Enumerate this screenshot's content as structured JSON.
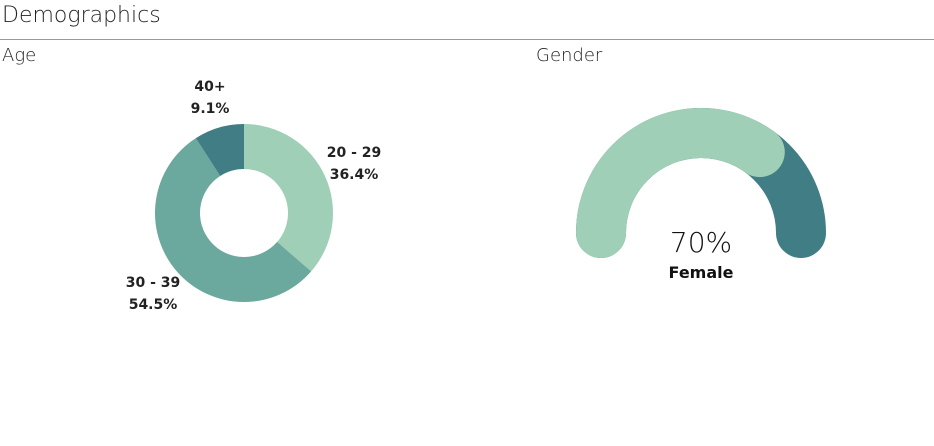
{
  "section_title": "Demographics",
  "chart_data": [
    {
      "type": "pie",
      "title": "Age",
      "slices": [
        {
          "category": "20 - 29",
          "percent_label": "36.4%",
          "value": 36.4,
          "color": "#9fcfb6"
        },
        {
          "category": "30 - 39",
          "percent_label": "54.5%",
          "value": 54.5,
          "color": "#6ba89e"
        },
        {
          "category": "40+",
          "percent_label": "9.1%",
          "value": 9.1,
          "color": "#417d85"
        }
      ]
    },
    {
      "type": "gauge",
      "title": "Gender",
      "value": 70,
      "value_label": "70%",
      "category": "Female",
      "fill_color": "#9fcfb6",
      "track_color": "#417d85"
    }
  ]
}
